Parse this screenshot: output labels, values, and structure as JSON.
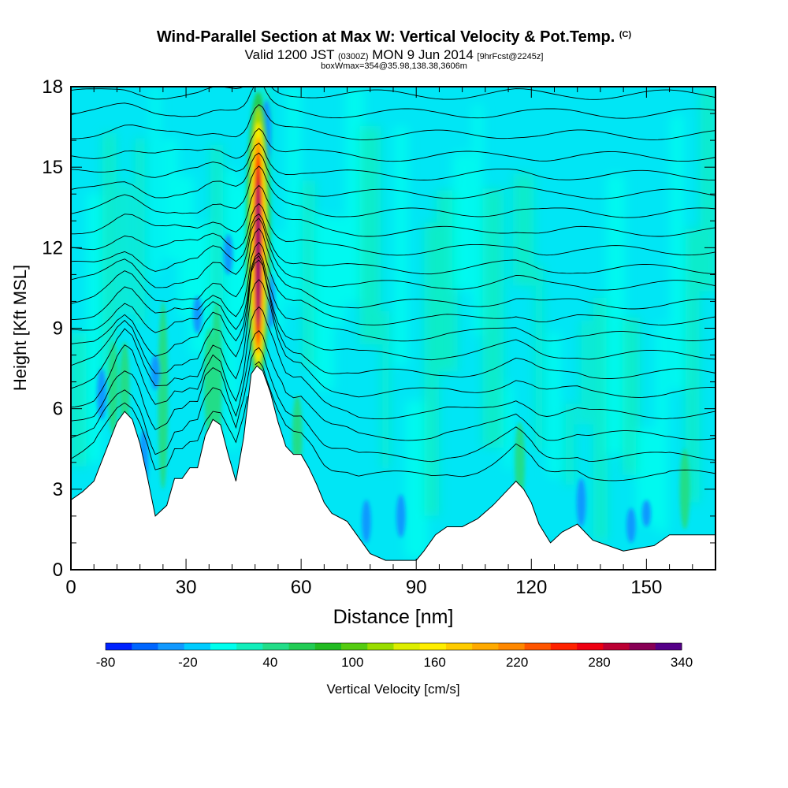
{
  "title": {
    "main": "Wind-Parallel Section at Max W: Vertical Velocity & Pot.Temp.",
    "copyright": "(C)",
    "valid_prefix": "Valid 1200 JST",
    "valid_utc": "(0300Z)",
    "valid_date": "MON 9 Jun 2014",
    "forecast": "[9hrFcst@2245z]",
    "boxwmax": "boxWmax=354@35.98,138.38,3606m"
  },
  "chart_data": {
    "type": "heatmap",
    "xlabel": "Distance [nm]",
    "ylabel": "Height [Kft MSL]",
    "xlim": [
      0,
      168
    ],
    "ylim": [
      0,
      18
    ],
    "x_ticks": [
      0,
      30,
      60,
      90,
      120,
      150
    ],
    "y_ticks": [
      0,
      3,
      6,
      9,
      12,
      15,
      18
    ],
    "colorbar": {
      "label": "Vertical Velocity [cm/s]",
      "min": -80,
      "max": 340,
      "step": 20,
      "tick_labels": [
        "-80",
        "-20",
        "40",
        "100",
        "160",
        "220",
        "280",
        "340"
      ],
      "colors": [
        "#0022ff",
        "#0066ff",
        "#1199ff",
        "#00ccff",
        "#00ffee",
        "#11eebb",
        "#22dd88",
        "#22cc55",
        "#22bb22",
        "#55cc11",
        "#99dd00",
        "#ddee00",
        "#ffee00",
        "#ffcc00",
        "#ffaa00",
        "#ff8800",
        "#ff5500",
        "#ff2200",
        "#ee0011",
        "#bb0033",
        "#880055",
        "#550088"
      ]
    },
    "terrain_kft": [
      [
        0,
        2.6
      ],
      [
        3,
        2.9
      ],
      [
        6,
        3.3
      ],
      [
        9,
        4.4
      ],
      [
        12,
        5.5
      ],
      [
        14,
        5.9
      ],
      [
        16,
        5.6
      ],
      [
        18,
        4.7
      ],
      [
        20,
        3.4
      ],
      [
        22,
        2.0
      ],
      [
        25,
        2.4
      ],
      [
        27,
        3.4
      ],
      [
        29,
        3.4
      ],
      [
        31,
        3.8
      ],
      [
        33,
        3.8
      ],
      [
        35,
        5.0
      ],
      [
        37,
        5.6
      ],
      [
        39,
        5.4
      ],
      [
        41,
        4.3
      ],
      [
        43,
        3.3
      ],
      [
        45,
        4.9
      ],
      [
        47,
        7.3
      ],
      [
        48.5,
        7.6
      ],
      [
        50,
        7.4
      ],
      [
        52,
        6.6
      ],
      [
        54,
        5.5
      ],
      [
        56,
        4.6
      ],
      [
        58,
        4.3
      ],
      [
        60,
        4.3
      ],
      [
        62,
        3.8
      ],
      [
        64,
        3.2
      ],
      [
        66,
        2.5
      ],
      [
        68,
        2.1
      ],
      [
        72,
        1.8
      ],
      [
        75,
        1.2
      ],
      [
        78,
        0.6
      ],
      [
        82,
        0.35
      ],
      [
        86,
        0.35
      ],
      [
        90,
        0.35
      ],
      [
        92,
        0.7
      ],
      [
        95,
        1.3
      ],
      [
        98,
        1.6
      ],
      [
        102,
        1.6
      ],
      [
        106,
        1.9
      ],
      [
        110,
        2.4
      ],
      [
        114,
        3.0
      ],
      [
        116,
        3.3
      ],
      [
        118,
        3.0
      ],
      [
        120,
        2.5
      ],
      [
        122,
        1.7
      ],
      [
        125,
        1.0
      ],
      [
        128,
        1.4
      ],
      [
        132,
        1.7
      ],
      [
        136,
        1.1
      ],
      [
        140,
        0.9
      ],
      [
        144,
        0.7
      ],
      [
        148,
        0.8
      ],
      [
        152,
        0.9
      ],
      [
        156,
        1.3
      ],
      [
        160,
        1.3
      ],
      [
        164,
        1.3
      ],
      [
        168,
        1.3
      ]
    ],
    "theta_isentropes_base_kft": [
      3.5,
      4.2,
      5.0,
      5.8,
      6.6,
      7.3,
      8.0,
      8.7,
      9.3,
      9.9,
      10.6,
      11.2,
      11.9,
      12.6,
      13.3,
      14.0,
      14.7,
      15.4,
      16.2,
      17.0,
      17.7
    ],
    "updraft_core": {
      "x_nm": 48.8,
      "ymin_kft": 7.0,
      "ymax_kft": 17.8,
      "max_cms": 354
    },
    "grid": false,
    "legend": "colorbar-bottom"
  }
}
